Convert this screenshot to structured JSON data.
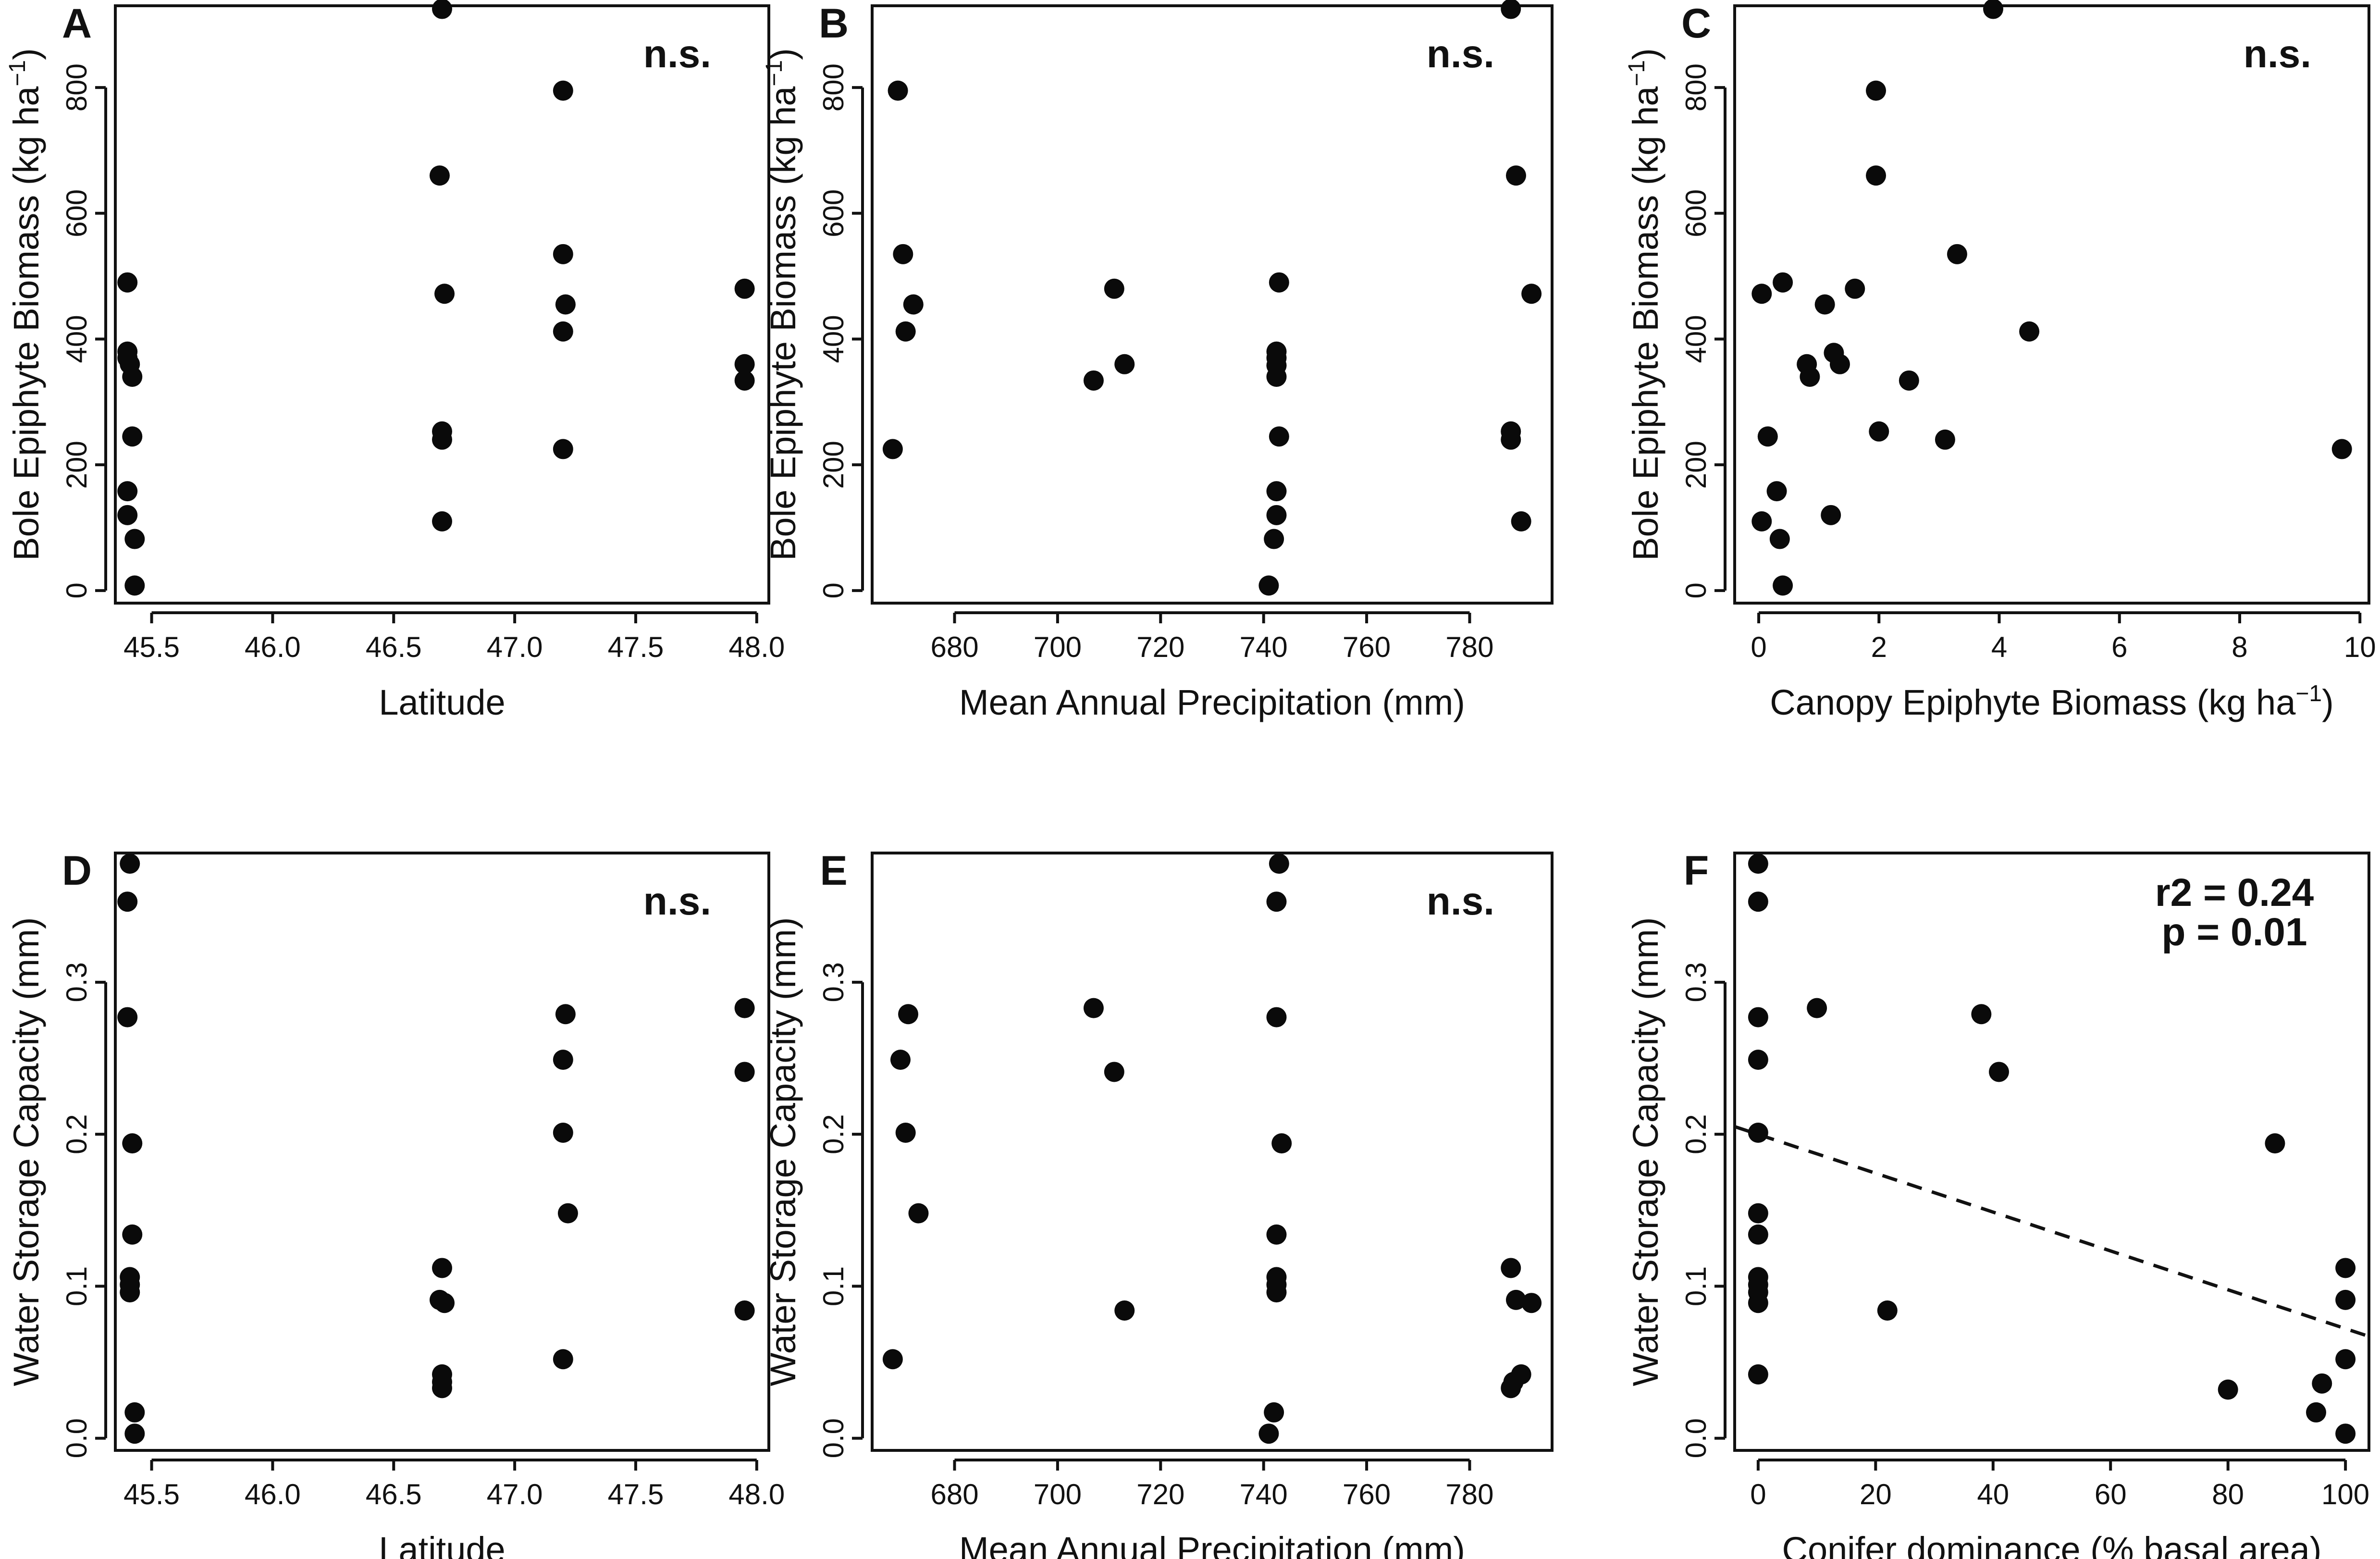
{
  "chart_data": [
    {
      "id": "A",
      "type": "scatter",
      "letter": "A",
      "annotation": "n.s.",
      "xlabel": "Latitude",
      "ylabel": [
        "Bole Epiphyte Biomass (kg ha",
        "−1",
        ")"
      ],
      "xlim": [
        45.35,
        48.05
      ],
      "ylim": [
        -20,
        930
      ],
      "xticks": [
        45.5,
        46.0,
        46.5,
        47.0,
        47.5,
        48.0
      ],
      "xtick_labels": [
        "45.5",
        "46.0",
        "46.5",
        "47.0",
        "47.5",
        "48.0"
      ],
      "yticks": [
        0,
        200,
        400,
        600,
        800
      ],
      "ytick_labels": [
        "0",
        "200",
        "400",
        "600",
        "800"
      ],
      "points": [
        [
          45.4,
          490
        ],
        [
          45.4,
          380
        ],
        [
          45.4,
          370
        ],
        [
          45.41,
          360
        ],
        [
          45.42,
          340
        ],
        [
          45.42,
          245
        ],
        [
          45.4,
          158
        ],
        [
          45.4,
          120
        ],
        [
          45.43,
          82
        ],
        [
          45.43,
          8
        ],
        [
          46.7,
          925
        ],
        [
          46.69,
          660
        ],
        [
          46.71,
          472
        ],
        [
          46.7,
          253
        ],
        [
          46.7,
          240
        ],
        [
          46.7,
          110
        ],
        [
          47.2,
          795
        ],
        [
          47.2,
          535
        ],
        [
          47.21,
          455
        ],
        [
          47.2,
          412
        ],
        [
          47.2,
          225
        ],
        [
          47.95,
          480
        ],
        [
          47.95,
          360
        ],
        [
          47.95,
          334
        ]
      ]
    },
    {
      "id": "B",
      "type": "scatter",
      "letter": "B",
      "annotation": "n.s.",
      "xlabel": "Mean Annual Precipitation (mm)",
      "ylabel": [
        "Bole Epiphyte Biomass (kg ha",
        "−1",
        ")"
      ],
      "xlim": [
        664,
        796
      ],
      "ylim": [
        -20,
        930
      ],
      "xticks": [
        680,
        700,
        720,
        740,
        760,
        780
      ],
      "xtick_labels": [
        "680",
        "700",
        "720",
        "740",
        "760",
        "780"
      ],
      "yticks": [
        0,
        200,
        400,
        600,
        800
      ],
      "ytick_labels": [
        "0",
        "200",
        "400",
        "600",
        "800"
      ],
      "points": [
        [
          669,
          795
        ],
        [
          670,
          535
        ],
        [
          672,
          455
        ],
        [
          670.5,
          412
        ],
        [
          668,
          225
        ],
        [
          711,
          480
        ],
        [
          713,
          360
        ],
        [
          707,
          334
        ],
        [
          743,
          490
        ],
        [
          742.5,
          380
        ],
        [
          742.5,
          370
        ],
        [
          742.5,
          358
        ],
        [
          742.5,
          340
        ],
        [
          743,
          245
        ],
        [
          742.5,
          158
        ],
        [
          742.5,
          120
        ],
        [
          742,
          82
        ],
        [
          741,
          8
        ],
        [
          788,
          925
        ],
        [
          789,
          660
        ],
        [
          792,
          472
        ],
        [
          788,
          253
        ],
        [
          788,
          240
        ],
        [
          790,
          110
        ]
      ]
    },
    {
      "id": "C",
      "type": "scatter",
      "letter": "C",
      "annotation": "n.s.",
      "xlabel": [
        "Canopy Epiphyte Biomass (kg ha",
        "−1",
        ")"
      ],
      "ylabel": [
        "Bole Epiphyte Biomass (kg ha",
        "−1",
        ")"
      ],
      "xlim": [
        -0.4,
        10.15
      ],
      "ylim": [
        -20,
        930
      ],
      "xticks": [
        0,
        2,
        4,
        6,
        8,
        10
      ],
      "xtick_labels": [
        "0",
        "2",
        "4",
        "6",
        "8",
        "10"
      ],
      "yticks": [
        0,
        200,
        400,
        600,
        800
      ],
      "ytick_labels": [
        "0",
        "200",
        "400",
        "600",
        "800"
      ],
      "points": [
        [
          3.9,
          925
        ],
        [
          1.95,
          795
        ],
        [
          1.95,
          660
        ],
        [
          0.05,
          472
        ],
        [
          0.4,
          490
        ],
        [
          1.6,
          480
        ],
        [
          3.3,
          535
        ],
        [
          1.1,
          455
        ],
        [
          4.5,
          412
        ],
        [
          1.25,
          378
        ],
        [
          0.8,
          360
        ],
        [
          1.35,
          360
        ],
        [
          0.85,
          340
        ],
        [
          2.5,
          334
        ],
        [
          2.0,
          253
        ],
        [
          3.1,
          240
        ],
        [
          0.15,
          245
        ],
        [
          0.3,
          158
        ],
        [
          1.2,
          120
        ],
        [
          0.05,
          110
        ],
        [
          0.35,
          82
        ],
        [
          0.4,
          8
        ],
        [
          9.7,
          225
        ]
      ]
    },
    {
      "id": "D",
      "type": "scatter",
      "letter": "D",
      "annotation": "n.s.",
      "xlabel": "Latitude",
      "ylabel": "Water Storage Capacity (mm)",
      "xlim": [
        45.35,
        48.05
      ],
      "ylim": [
        -0.008,
        0.385
      ],
      "xticks": [
        45.5,
        46.0,
        46.5,
        47.0,
        47.5,
        48.0
      ],
      "xtick_labels": [
        "45.5",
        "46.0",
        "46.5",
        "47.0",
        "47.5",
        "48.0"
      ],
      "yticks": [
        0.0,
        0.1,
        0.2,
        0.3
      ],
      "ytick_labels": [
        "0.0",
        "0.1",
        "0.2",
        "0.3"
      ],
      "points": [
        [
          45.41,
          0.378
        ],
        [
          45.4,
          0.353
        ],
        [
          45.4,
          0.277
        ],
        [
          45.42,
          0.194
        ],
        [
          45.42,
          0.134
        ],
        [
          45.41,
          0.106
        ],
        [
          45.41,
          0.101
        ],
        [
          45.41,
          0.096
        ],
        [
          45.43,
          0.017
        ],
        [
          45.43,
          0.003
        ],
        [
          46.7,
          0.112
        ],
        [
          46.69,
          0.091
        ],
        [
          46.71,
          0.089
        ],
        [
          46.7,
          0.042
        ],
        [
          46.7,
          0.037
        ],
        [
          46.7,
          0.033
        ],
        [
          47.21,
          0.279
        ],
        [
          47.2,
          0.249
        ],
        [
          47.2,
          0.201
        ],
        [
          47.22,
          0.148
        ],
        [
          47.2,
          0.052
        ],
        [
          47.95,
          0.283
        ],
        [
          47.95,
          0.241
        ],
        [
          47.95,
          0.084
        ]
      ]
    },
    {
      "id": "E",
      "type": "scatter",
      "letter": "E",
      "annotation": "n.s.",
      "xlabel": "Mean Annual Precipitation (mm)",
      "ylabel": "Water Storage Capacity (mm)",
      "xlim": [
        664,
        796
      ],
      "ylim": [
        -0.008,
        0.385
      ],
      "xticks": [
        680,
        700,
        720,
        740,
        760,
        780
      ],
      "xtick_labels": [
        "680",
        "700",
        "720",
        "740",
        "760",
        "780"
      ],
      "yticks": [
        0.0,
        0.1,
        0.2,
        0.3
      ],
      "ytick_labels": [
        "0.0",
        "0.1",
        "0.2",
        "0.3"
      ],
      "points": [
        [
          671,
          0.279
        ],
        [
          669.5,
          0.249
        ],
        [
          670.5,
          0.201
        ],
        [
          673,
          0.148
        ],
        [
          668,
          0.052
        ],
        [
          707,
          0.283
        ],
        [
          711,
          0.241
        ],
        [
          713,
          0.084
        ],
        [
          743,
          0.378
        ],
        [
          742.5,
          0.353
        ],
        [
          742.5,
          0.277
        ],
        [
          743.5,
          0.194
        ],
        [
          742.5,
          0.134
        ],
        [
          742.5,
          0.106
        ],
        [
          742.5,
          0.101
        ],
        [
          742.5,
          0.096
        ],
        [
          742,
          0.017
        ],
        [
          741,
          0.003
        ],
        [
          788,
          0.112
        ],
        [
          789,
          0.091
        ],
        [
          792,
          0.089
        ],
        [
          790,
          0.042
        ],
        [
          788.5,
          0.037
        ],
        [
          788,
          0.033
        ]
      ]
    },
    {
      "id": "F",
      "type": "scatter",
      "letter": "F",
      "annotation": [
        "r2 = 0.24",
        "p = 0.01"
      ],
      "xlabel": "Conifer dominance (% basal area)",
      "ylabel": "Water Storage Capacity (mm)",
      "xlim": [
        -4,
        104
      ],
      "ylim": [
        -0.008,
        0.385
      ],
      "xticks": [
        0,
        20,
        40,
        60,
        80,
        100
      ],
      "xtick_labels": [
        "0",
        "20",
        "40",
        "60",
        "80",
        "100"
      ],
      "yticks": [
        0.0,
        0.1,
        0.2,
        0.3
      ],
      "ytick_labels": [
        "0.0",
        "0.1",
        "0.2",
        "0.3"
      ],
      "fit_line": {
        "x": [
          -4,
          104
        ],
        "y": [
          0.205,
          0.067
        ]
      },
      "points": [
        [
          0,
          0.378
        ],
        [
          0,
          0.353
        ],
        [
          0,
          0.277
        ],
        [
          0,
          0.249
        ],
        [
          0,
          0.201
        ],
        [
          0,
          0.148
        ],
        [
          0,
          0.134
        ],
        [
          0,
          0.106
        ],
        [
          0,
          0.101
        ],
        [
          0,
          0.096
        ],
        [
          0,
          0.089
        ],
        [
          0,
          0.042
        ],
        [
          10,
          0.283
        ],
        [
          38,
          0.279
        ],
        [
          41,
          0.241
        ],
        [
          88,
          0.194
        ],
        [
          22,
          0.084
        ],
        [
          80,
          0.032
        ],
        [
          95,
          0.017
        ],
        [
          96,
          0.036
        ],
        [
          100,
          0.112
        ],
        [
          100,
          0.091
        ],
        [
          100,
          0.052
        ],
        [
          100,
          0.003
        ]
      ]
    }
  ]
}
